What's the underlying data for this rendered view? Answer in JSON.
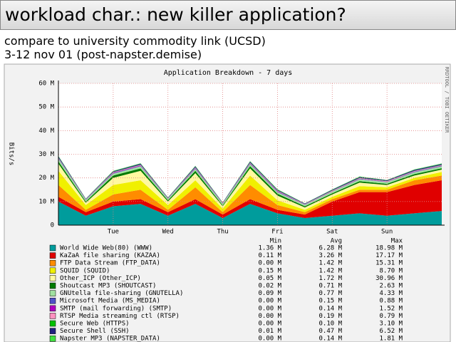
{
  "header": {
    "title": "workload char.: new killer application?",
    "lines": [
      "compare to university commodity link (UCSD)",
      "3-12 nov 01 (post-napster.demise)"
    ]
  },
  "chart_data": {
    "type": "area",
    "stacked": true,
    "title": "Application Breakdown - 7 days",
    "ylabel": "Bits/s",
    "side_note": "RRDTOOL / TOBI OETIKER",
    "categories": [
      null,
      null,
      "Tue",
      null,
      "Wed",
      null,
      "Thu",
      null,
      "Fri",
      null,
      "Sat",
      null,
      "Sun",
      null,
      null
    ],
    "ylim": [
      0,
      60
    ],
    "yticks": [
      0,
      {
        "value": 10,
        "label": "10 M"
      },
      {
        "value": 20,
        "label": "20 M"
      },
      {
        "value": 30,
        "label": "30 M"
      },
      {
        "value": 40,
        "label": "40 M"
      },
      {
        "value": 50,
        "label": "50 M"
      },
      {
        "value": 60,
        "label": "60 M"
      }
    ],
    "grid": true,
    "stat_headers": [
      "Min",
      "Avg",
      "Max"
    ],
    "series": [
      {
        "name": "World Wide Web(80) (WWW)",
        "color": "#009c9c",
        "stats": [
          "1.36 M",
          "6.28 M",
          "18.98 M"
        ],
        "values": [
          10,
          4,
          8,
          9,
          4,
          9,
          3,
          9,
          5,
          3,
          4,
          5,
          4,
          5,
          6
        ]
      },
      {
        "name": "KaZaA file sharing (KAZAA)",
        "color": "#e00000",
        "stats": [
          "0.11 M",
          "3.26 M",
          "17.17 M"
        ],
        "values": [
          2,
          1.5,
          2,
          2,
          1.5,
          2,
          1.5,
          2,
          1.5,
          1.5,
          6,
          9,
          10,
          12,
          13
        ]
      },
      {
        "name": "FTP Data Stream (FTP_DATA)",
        "color": "#ff8c00",
        "stats": [
          "0.00 M",
          "1.42 M",
          "15.31 M"
        ],
        "values": [
          5,
          1,
          3,
          4,
          1,
          5,
          1,
          6,
          2,
          1,
          1,
          1,
          1,
          2,
          2
        ]
      },
      {
        "name": "SQUID (SQUID)",
        "color": "#f0f000",
        "stats": [
          "0.15 M",
          "1.42 M",
          "8.70 M"
        ],
        "values": [
          6,
          2,
          4,
          4,
          2,
          3,
          1.5,
          4,
          2,
          1,
          1,
          1.5,
          1,
          1,
          1.5
        ]
      },
      {
        "name": "Other_ICP (Other_ICP)",
        "color": "#fff8a0",
        "stats": [
          "0.05 M",
          "1.72 M",
          "30.96 M"
        ],
        "values": [
          3,
          1,
          3,
          4,
          1.5,
          3,
          1,
          3,
          2,
          1,
          1,
          1.5,
          1,
          1,
          1
        ]
      },
      {
        "name": "Shoutcast MP3 (SHOUTCAST)",
        "color": "#007a00",
        "stats": [
          "0.02 M",
          "0.71 M",
          "2.63 M"
        ],
        "values": [
          1,
          0.5,
          1,
          1,
          0.5,
          1,
          0.4,
          1,
          0.8,
          0.5,
          0.5,
          0.6,
          0.5,
          0.6,
          0.6
        ]
      },
      {
        "name": "GNUtella file-sharing (GNUTELLA)",
        "color": "#a0e0a0",
        "stats": [
          "0.09 M",
          "0.77 M",
          "4.33 M"
        ],
        "values": [
          1,
          0.6,
          0.8,
          0.9,
          0.6,
          0.8,
          0.6,
          0.8,
          0.7,
          0.6,
          0.7,
          0.8,
          0.7,
          0.8,
          0.8
        ]
      },
      {
        "name": "Microsoft Media (MS_MEDIA)",
        "color": "#5050c8",
        "stats": [
          "0.00 M",
          "0.15 M",
          "0.88 M"
        ],
        "values": [
          0.2,
          0.1,
          0.2,
          0.2,
          0.1,
          0.2,
          0.1,
          0.2,
          0.2,
          0.1,
          0.1,
          0.2,
          0.1,
          0.2,
          0.2
        ]
      },
      {
        "name": "SMTP (mail forwarding) (SMTP)",
        "color": "#b000c0",
        "stats": [
          "0.00 M",
          "0.14 M",
          "1.52 M"
        ],
        "values": [
          0.1,
          0.1,
          0.2,
          0.2,
          0.1,
          0.2,
          0.1,
          0.2,
          0.2,
          0.1,
          0.1,
          0.1,
          0.1,
          0.1,
          0.1
        ]
      },
      {
        "name": "RTSP Media streaming ctl (RTSP)",
        "color": "#ff90c0",
        "stats": [
          "0.00 M",
          "0.19 M",
          "0.79 M"
        ],
        "values": [
          0.2,
          0.1,
          0.2,
          0.2,
          0.1,
          0.2,
          0.1,
          0.2,
          0.2,
          0.1,
          0.2,
          0.2,
          0.2,
          0.2,
          0.2
        ]
      },
      {
        "name": "Secure Web (HTTPS)",
        "color": "#00c000",
        "stats": [
          "0.00 M",
          "0.10 M",
          "3.10 M"
        ],
        "values": [
          0.1,
          0.05,
          0.1,
          0.1,
          0.05,
          0.1,
          0.05,
          0.1,
          0.1,
          0.05,
          0.1,
          0.1,
          0.1,
          0.1,
          0.1
        ]
      },
      {
        "name": "Secure Shell (SSH)",
        "color": "#202080",
        "stats": [
          "0.01 M",
          "0.47 M",
          "6.52 M"
        ],
        "values": [
          0.5,
          0.2,
          0.3,
          0.4,
          0.2,
          0.4,
          0.2,
          0.4,
          0.3,
          0.2,
          0.3,
          0.4,
          0.3,
          0.4,
          0.4
        ]
      },
      {
        "name": "Napster MP3 (NAPSTER_DATA)",
        "color": "#40e040",
        "stats": [
          "0.00 M",
          "0.14 M",
          "1.81 M"
        ],
        "values": [
          0.2,
          0.1,
          0.2,
          0.2,
          0.1,
          0.2,
          0.1,
          0.2,
          0.2,
          0.1,
          0.1,
          0.2,
          0.1,
          0.2,
          0.2
        ]
      }
    ]
  }
}
